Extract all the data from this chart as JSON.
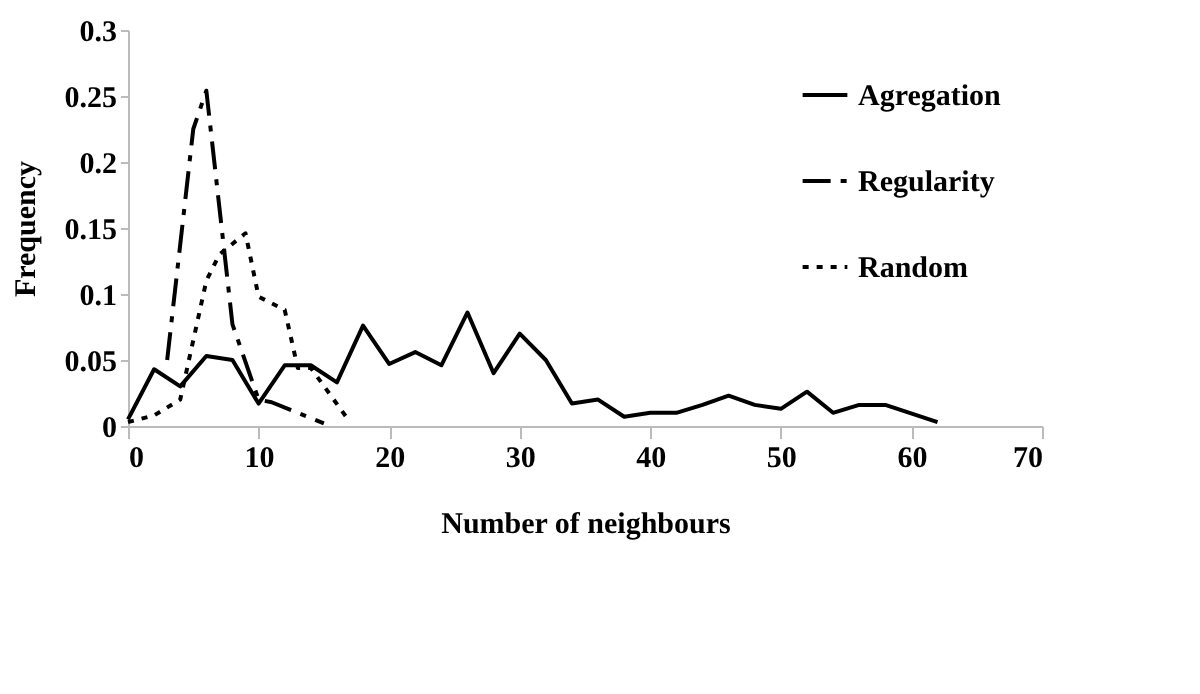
{
  "chart_data": {
    "type": "line",
    "xlabel": "Number of neighbours",
    "ylabel": "Frequency",
    "xlim": [
      0,
      70
    ],
    "xticks": [
      0,
      10,
      20,
      30,
      40,
      50,
      60,
      70
    ],
    "ylim": [
      0,
      0.3
    ],
    "yticks": [
      0,
      0.05,
      0.1,
      0.15,
      0.2,
      0.25,
      0.3
    ],
    "grid": false,
    "legend": "top right",
    "marker": "none",
    "series": [
      {
        "name": "Agregation",
        "color": "#000000",
        "line_style": "solid",
        "x": [
          0,
          2,
          4,
          6,
          8,
          10,
          12,
          14,
          16,
          18,
          20,
          22,
          24,
          26,
          28,
          30,
          32,
          34,
          36,
          38,
          40,
          42,
          44,
          46,
          48,
          50,
          52,
          54,
          56,
          58,
          62
        ],
        "values": [
          0.005,
          0.043,
          0.03,
          0.053,
          0.05,
          0.017,
          0.046,
          0.046,
          0.033,
          0.076,
          0.047,
          0.056,
          0.046,
          0.086,
          0.04,
          0.07,
          0.05,
          0.017,
          0.02,
          0.007,
          0.01,
          0.01,
          0.016,
          0.023,
          0.016,
          0.013,
          0.026,
          0.01,
          0.016,
          0.016,
          0.003
        ]
      },
      {
        "name": "Regularity",
        "color": "#000000",
        "line_style": "dashed",
        "x": [
          3,
          5,
          6,
          8,
          10,
          11,
          15
        ],
        "values": [
          0.05,
          0.225,
          0.254,
          0.077,
          0.02,
          0.018,
          0.002
        ]
      },
      {
        "name": "Random",
        "color": "#000000",
        "line_style": "dotted",
        "x": [
          0,
          2,
          4,
          6,
          7,
          9,
          10,
          12,
          13,
          14,
          17
        ],
        "values": [
          0.003,
          0.008,
          0.02,
          0.11,
          0.13,
          0.146,
          0.098,
          0.088,
          0.044,
          0.044,
          0.003
        ]
      }
    ]
  }
}
